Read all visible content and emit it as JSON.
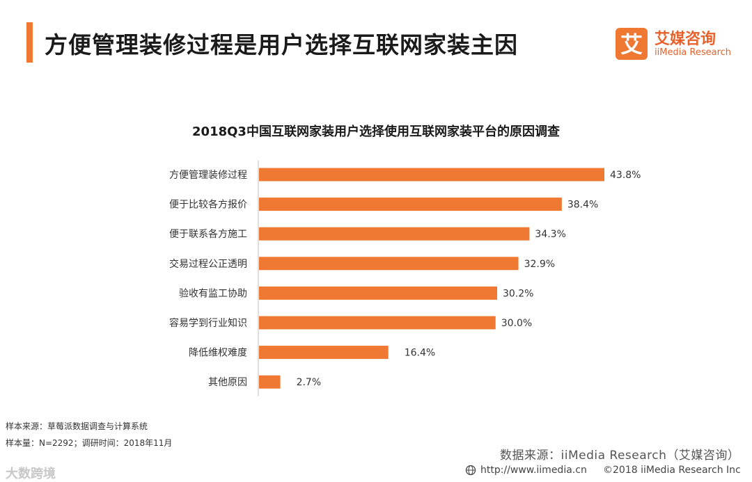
{
  "header": {
    "title": "方便管理装修过程是用户选择互联网家装主因"
  },
  "logo": {
    "mark_glyph": "艾",
    "name_cn": "艾媒咨询",
    "name_en": "iiMedia Research"
  },
  "colors": {
    "accent": "#ef7833",
    "bar": "#ef7833",
    "brand_text": "#e8612c"
  },
  "chart_data": {
    "type": "bar",
    "orientation": "horizontal",
    "title": "2018Q3中国互联网家装用户选择使用互联网家装平台的原因调查",
    "categories": [
      "方便管理装修过程",
      "便于比较各方报价",
      "便于联系各方施工",
      "交易过程公正透明",
      "验收有监工协助",
      "容易学到行业知识",
      "降低维权难度",
      "其他原因"
    ],
    "values": [
      43.8,
      38.4,
      34.3,
      32.9,
      30.2,
      30.0,
      16.4,
      2.7
    ],
    "value_labels": [
      "43.8%",
      "38.4%",
      "34.3%",
      "32.9%",
      "30.2%",
      "30.0%",
      "16.4%",
      "2.7%"
    ],
    "unit": "%",
    "xlabel": "",
    "ylabel": "",
    "xlim": [
      0,
      43.8
    ],
    "grid": false,
    "legend": "none"
  },
  "notes": {
    "sample_source": "样本来源：草莓派数据调查与计算系统",
    "sample_size": "样本量：N=2292；调研时间：2018年11月"
  },
  "source": "数据来源：iiMedia Research（艾媒咨询）",
  "footer": {
    "watermark": "大数跨境",
    "url": "http://www.iimedia.cn",
    "copyright": "©2018  iiMedia Research  Inc"
  }
}
